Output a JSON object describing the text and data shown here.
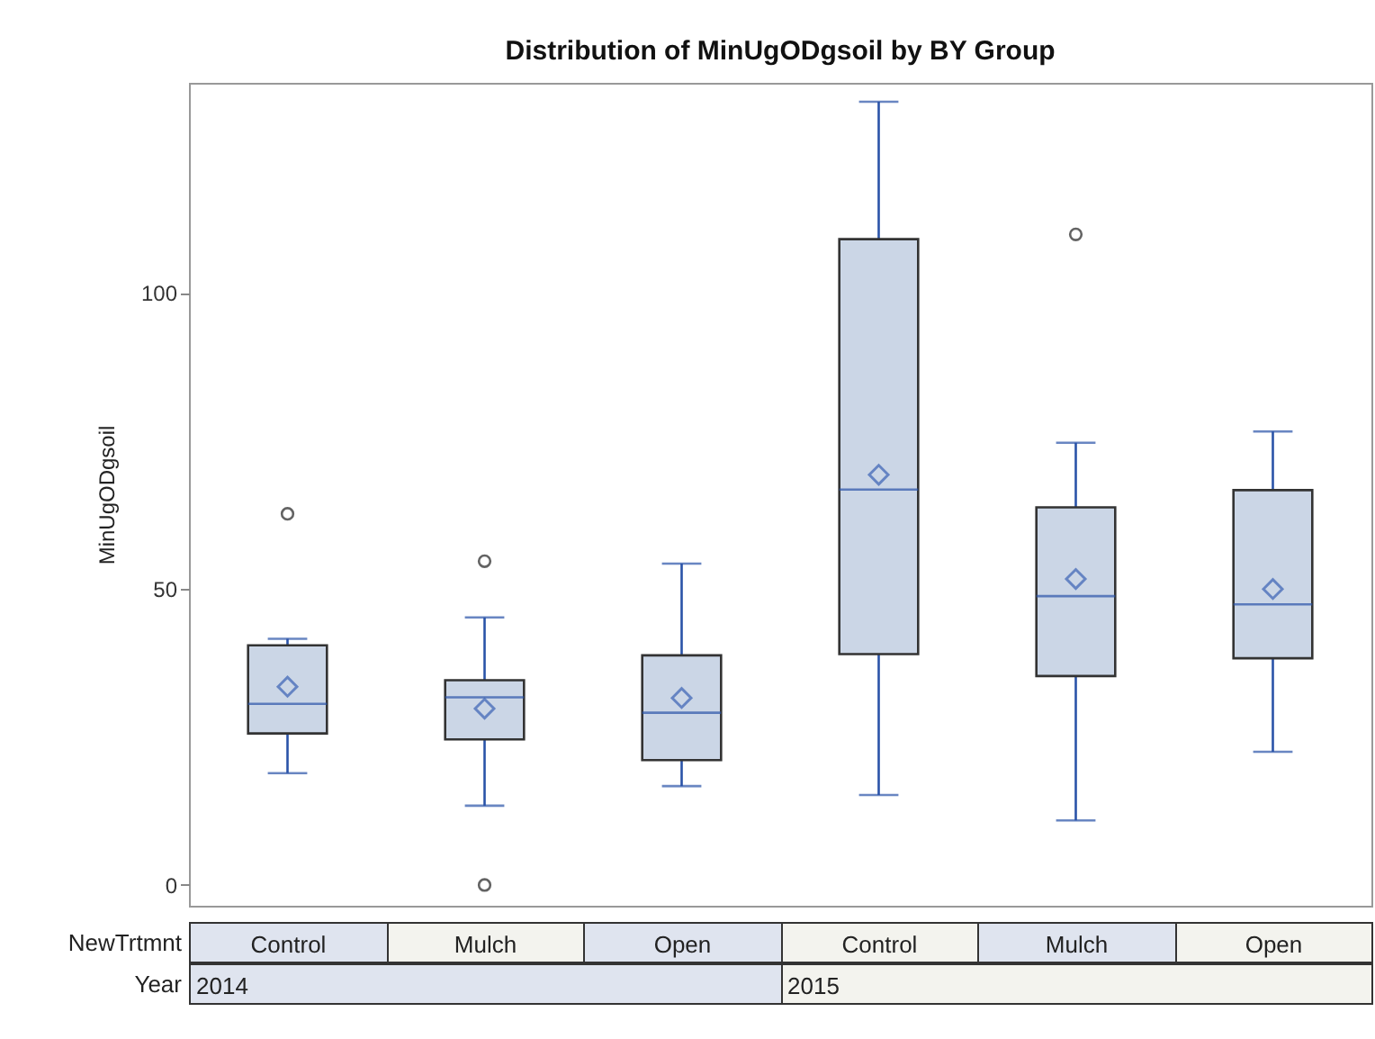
{
  "chart_data": {
    "type": "box",
    "title": "Distribution of MinUgODgsoil by BY Group",
    "xlabel": "NewTrtmnt",
    "ylabel": "MinUgODgsoil",
    "categories": [
      "Control",
      "Mulch",
      "Open",
      "Control",
      "Mulch",
      "Open"
    ],
    "annotations": [
      "Year",
      "2014",
      "2015"
    ],
    "series": [
      {
        "color": "#cbd6e6",
        "boxes": [
          {
            "low": 18.9,
            "q1": 25.6,
            "median": 30.6,
            "q3": 40.5,
            "high": 41.6,
            "mean": 33.5,
            "outliers": [
              62.7
            ]
          },
          {
            "low": 13.4,
            "q1": 24.6,
            "median": 31.7,
            "q3": 34.6,
            "high": 45.2,
            "mean": 29.8,
            "outliers": [
              54.7,
              0
            ]
          },
          {
            "low": 16.7,
            "q1": 21.1,
            "median": 29.1,
            "q3": 38.8,
            "high": 54.3,
            "mean": 31.6
          },
          {
            "low": 15.2,
            "q1": 39.0,
            "median": 66.8,
            "q3": 109.1,
            "high": 132.3,
            "mean": 69.3
          },
          {
            "low": 10.9,
            "q1": 35.3,
            "median": 48.8,
            "q3": 63.8,
            "high": 74.7,
            "mean": 51.7,
            "outliers": [
              109.9
            ]
          },
          {
            "low": 22.5,
            "q1": 38.3,
            "median": 47.4,
            "q3": 66.7,
            "high": 76.6,
            "mean": 50.0
          }
        ]
      }
    ],
    "ylim": [
      -3.5,
      135.5
    ],
    "yticks": [
      0,
      50,
      100
    ],
    "grid": false
  }
}
